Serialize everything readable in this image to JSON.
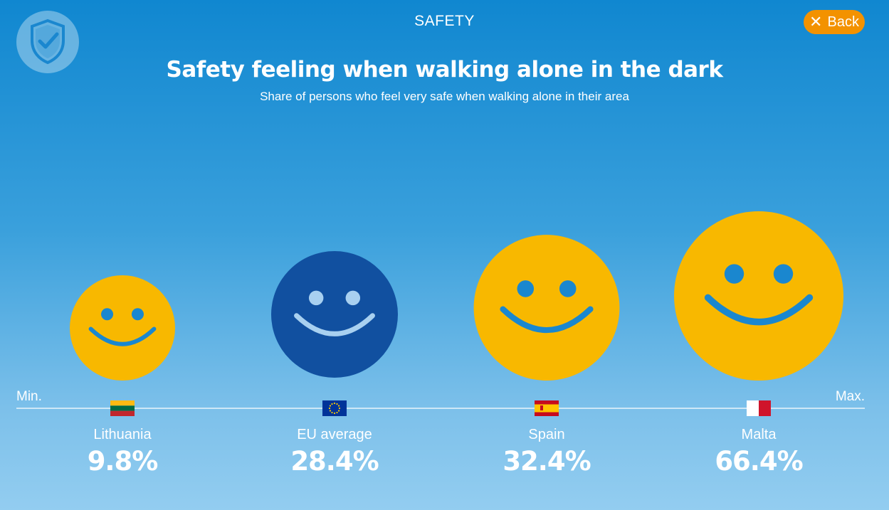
{
  "header": {
    "section": "SAFETY",
    "back_label": "Back",
    "badge_icon": "shield-check-icon"
  },
  "chart_data": {
    "type": "bubble",
    "title": "Safety feeling when walking alone in the dark",
    "subtitle": "Share of persons who feel very safe when walking alone in their area",
    "axis": {
      "min_label": "Min.",
      "max_label": "Max."
    },
    "unit": "%",
    "categories": [
      "Lithuania",
      "EU average",
      "Spain",
      "Malta"
    ],
    "values": [
      9.8,
      28.4,
      32.4,
      66.4
    ],
    "value_labels": [
      "9.8%",
      "28.4%",
      "32.4%",
      "66.4%"
    ],
    "flags": [
      "lithuania-flag-icon",
      "eu-flag-icon",
      "spain-flag-icon",
      "malta-flag-icon"
    ],
    "colors": {
      "country_face": "#f8b800",
      "country_features": "#1a87cf",
      "eu_face": "#1150a0",
      "eu_features": "#a8d0f0",
      "accent": "#f39200"
    }
  }
}
